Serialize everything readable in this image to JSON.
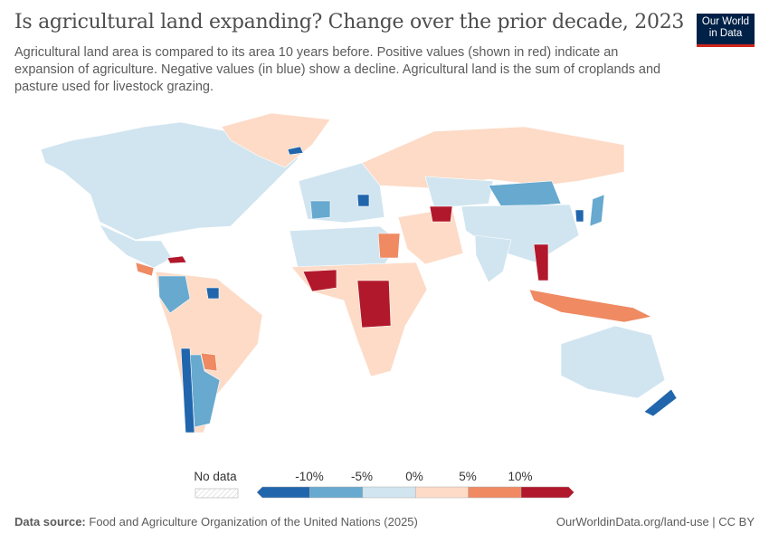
{
  "header": {
    "title": "Is agricultural land expanding? Change over the prior decade, 2023",
    "subtitle": "Agricultural land area is compared to its area 10 years before. Positive values (shown in red) indicate an expansion of agriculture. Negative values (in blue) show a decline. Agricultural land is the sum of croplands and pasture used for livestock grazing.",
    "logo_line1": "Our World",
    "logo_line2": "in Data"
  },
  "legend": {
    "no_data_label": "No data",
    "tick_labels": [
      "-10%",
      "-5%",
      "0%",
      "5%",
      "10%"
    ],
    "bins": [
      {
        "range": "< -10%",
        "color": "#2166ac"
      },
      {
        "range": "-10% to -5%",
        "color": "#67a9cf"
      },
      {
        "range": "-5% to 0%",
        "color": "#d1e5f0"
      },
      {
        "range": "0% to 5%",
        "color": "#fddbc7"
      },
      {
        "range": "5% to 10%",
        "color": "#ef8a62"
      },
      {
        "range": "> 10%",
        "color": "#b2182b"
      }
    ]
  },
  "footer": {
    "source_label": "Data source:",
    "source_text": "Food and Agriculture Organization of the United Nations (2025)",
    "link": "OurWorldinData.org/land-use | CC BY"
  }
}
